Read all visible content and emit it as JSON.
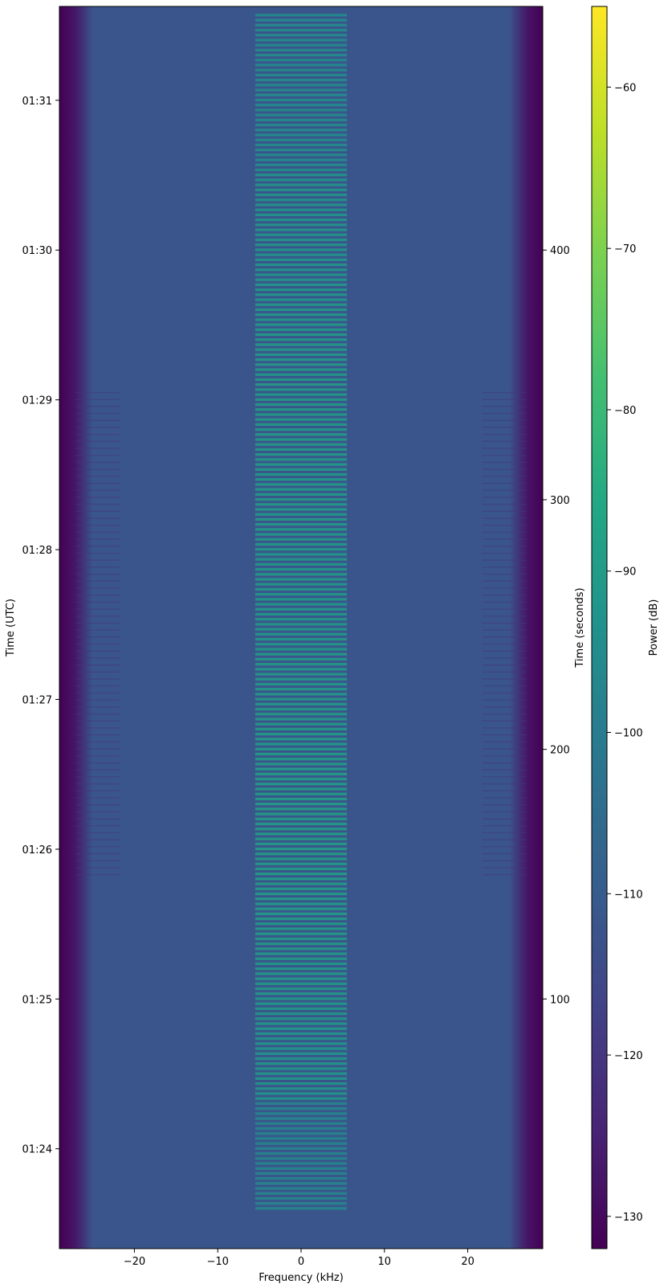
{
  "chart_data": {
    "type": "heatmap",
    "title": "",
    "xlabel": "Frequency (kHz)",
    "ylabel_left": "Time (UTC)",
    "ylabel_right": "Time (seconds)",
    "colorbar_label": "Power (dB)",
    "colormap": "viridis",
    "xlim": [
      -29,
      29
    ],
    "x_ticks": [
      -20,
      -10,
      0,
      10,
      20
    ],
    "x_tick_labels": [
      "−20",
      "−10",
      "0",
      "10",
      "20"
    ],
    "time_left_ticks": [
      {
        "label": "01:24",
        "seconds": 40
      },
      {
        "label": "01:25",
        "seconds": 100
      },
      {
        "label": "01:26",
        "seconds": 160
      },
      {
        "label": "01:27",
        "seconds": 220
      },
      {
        "label": "01:28",
        "seconds": 280
      },
      {
        "label": "01:29",
        "seconds": 340
      },
      {
        "label": "01:30",
        "seconds": 400
      },
      {
        "label": "01:31",
        "seconds": 460
      }
    ],
    "time_right_ticks": [
      100,
      200,
      300,
      400
    ],
    "time_seconds_range": [
      0,
      497.6
    ],
    "colorbar_range": [
      -132,
      -55
    ],
    "colorbar_ticks": [
      -60,
      -70,
      -80,
      -90,
      -100,
      -110,
      -120,
      -130
    ],
    "colorbar_tick_labels": [
      "−60",
      "−70",
      "−80",
      "−90",
      "−100",
      "−110",
      "−120",
      "−130"
    ],
    "signal": {
      "noise_floor_db": -112,
      "passband_edges_khz": [
        -27,
        27
      ],
      "outside_band_db": -132,
      "center_band_khz": [
        -5,
        5
      ],
      "center_band_peak_db": -87,
      "pulsed_band_seconds": [
        15,
        495
      ]
    }
  }
}
